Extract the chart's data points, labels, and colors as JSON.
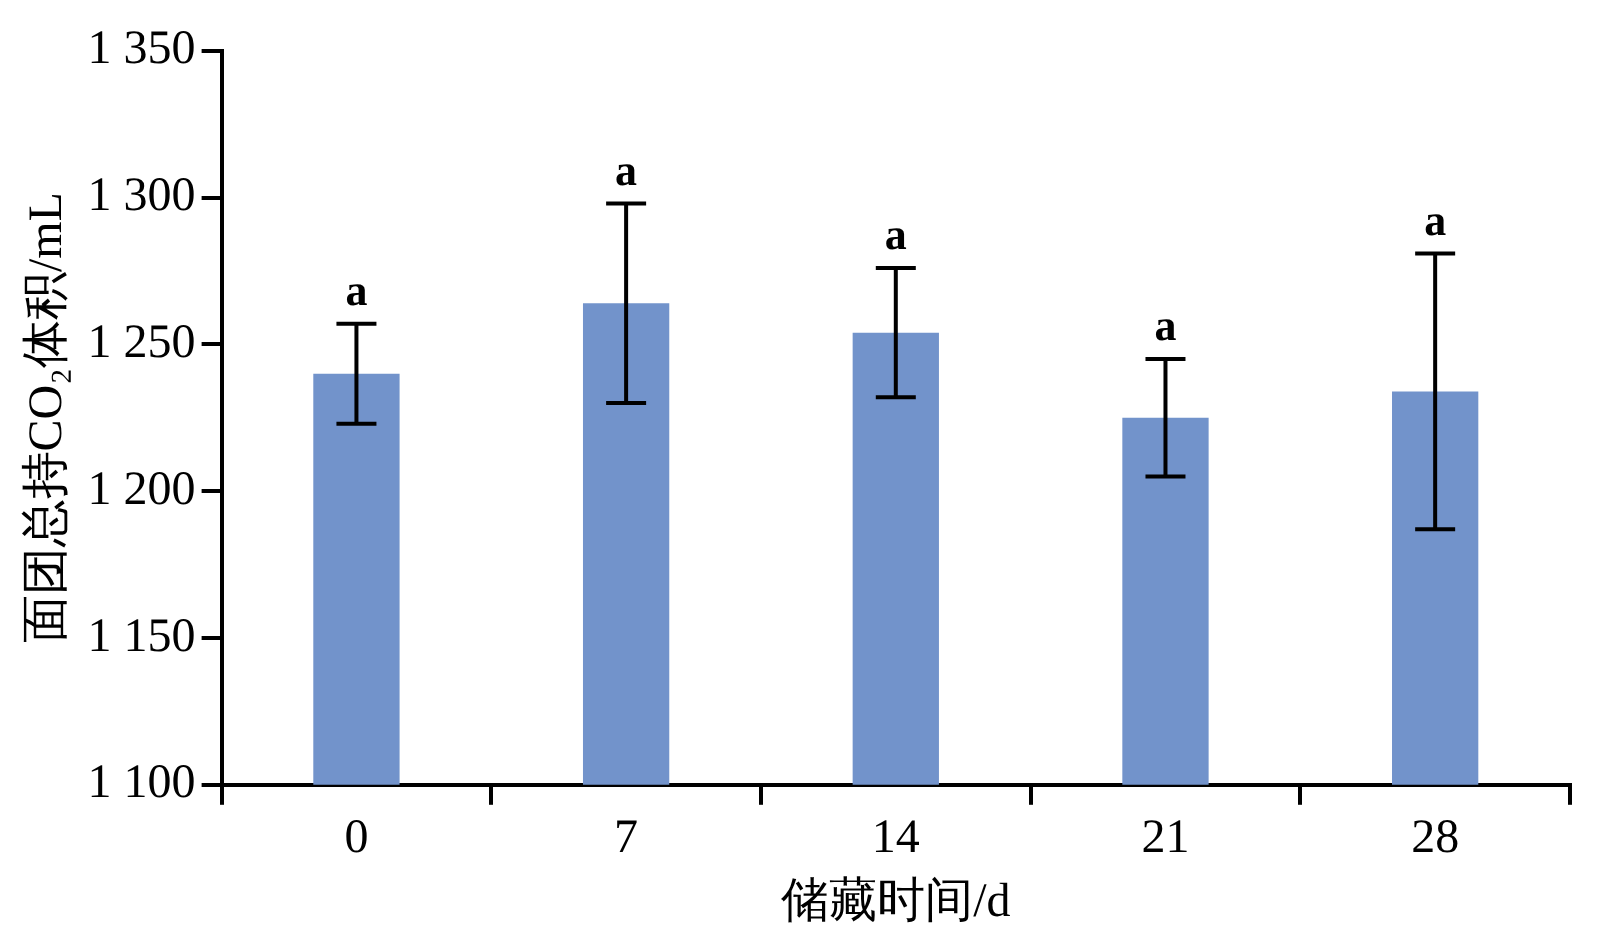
{
  "chart_data": {
    "type": "bar",
    "xlabel": "储藏时间/d",
    "ylabel": "面团总持CO₂体积/mL",
    "categories": [
      "0",
      "7",
      "14",
      "21",
      "28"
    ],
    "series": [
      {
        "color": "#7293cb",
        "values": [
          1240,
          1264,
          1254,
          1225,
          1234
        ],
        "errors": [
          17,
          34,
          22,
          20,
          47
        ]
      }
    ],
    "ylim": [
      1100,
      1350
    ],
    "yticks": [
      {
        "value": 1100,
        "label": "1 100"
      },
      {
        "value": 1150,
        "label": "1 150"
      },
      {
        "value": 1200,
        "label": "1 200"
      },
      {
        "value": 1250,
        "label": "1 250"
      },
      {
        "value": 1300,
        "label": "1 300"
      },
      {
        "value": 1350,
        "label": "1 350"
      }
    ],
    "annotations": [
      {
        "text": "a",
        "x": "0",
        "y": 1257
      },
      {
        "text": "a",
        "x": "7",
        "y": 1298
      },
      {
        "text": "a",
        "x": "14",
        "y": 1276
      },
      {
        "text": "a",
        "x": "21",
        "y": 1245
      },
      {
        "text": "a",
        "x": "28",
        "y": 1281
      }
    ],
    "grid": false,
    "legend": false
  }
}
